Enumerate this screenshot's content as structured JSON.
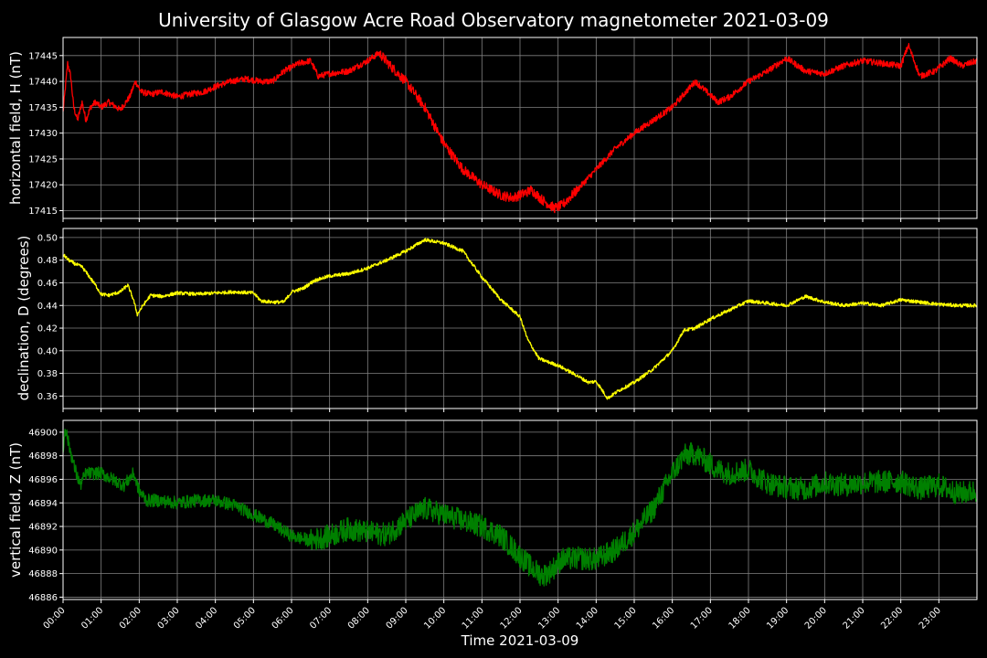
{
  "title": "University of Glasgow Acre Road Observatory magnetometer 2021-03-09",
  "colors": {
    "background": "#000000",
    "axis": "#ffffff",
    "grid": "#808080",
    "h": "#ff0000",
    "d": "#ffff00",
    "z": "#008000"
  },
  "chart_data": [
    {
      "type": "line",
      "ylabel": "horizontal field, H (nT)",
      "color": "#ff0000",
      "ylim": [
        17413.5,
        17448.5
      ],
      "yticks": [
        17415,
        17420,
        17425,
        17430,
        17435,
        17440,
        17445
      ],
      "xlim": [
        0,
        24
      ],
      "noise": 0.6,
      "x": [
        0,
        0.05,
        0.12,
        0.2,
        0.28,
        0.38,
        0.5,
        0.6,
        0.72,
        0.85,
        1.0,
        1.2,
        1.5,
        1.75,
        1.9,
        2.05,
        2.3,
        2.6,
        3.0,
        3.3,
        3.7,
        4.0,
        4.4,
        4.8,
        5.2,
        5.5,
        5.8,
        6.2,
        6.5,
        6.7,
        7.0,
        7.5,
        8.0,
        8.3,
        8.6,
        9.0,
        9.5,
        10.0,
        10.5,
        11.0,
        11.5,
        11.8,
        12.0,
        12.3,
        12.6,
        12.9,
        13.1,
        13.5,
        14.0,
        14.5,
        15.0,
        15.5,
        16.0,
        16.3,
        16.6,
        16.9,
        17.2,
        17.5,
        18.0,
        18.5,
        19.0,
        19.5,
        20.0,
        20.5,
        21.0,
        21.5,
        22.0,
        22.2,
        22.5,
        22.9,
        23.3,
        23.6,
        24.0
      ],
      "y": [
        17434,
        17438,
        17443.5,
        17441,
        17435,
        17432.5,
        17436,
        17432.5,
        17435,
        17436,
        17435,
        17436,
        17434.5,
        17437,
        17440,
        17438,
        17437.5,
        17438,
        17437,
        17437.5,
        17438,
        17439,
        17440,
        17440.5,
        17440,
        17440,
        17442,
        17443.5,
        17444,
        17441,
        17441.5,
        17442,
        17444,
        17445.5,
        17443,
        17440,
        17435,
        17428,
        17423,
        17420,
        17418,
        17417.5,
        17418,
        17419,
        17417,
        17415.5,
        17416,
        17419,
        17423,
        17427,
        17430,
        17432.5,
        17435,
        17437.5,
        17440,
        17438,
        17436,
        17437,
        17440,
        17442,
        17444.5,
        17442,
        17441.5,
        17443,
        17444,
        17443.5,
        17443,
        17447,
        17441,
        17442,
        17444.5,
        17443,
        17444
      ]
    },
    {
      "type": "line",
      "ylabel": "declination, D (degrees)",
      "color": "#ffff00",
      "ylim": [
        0.349,
        0.508
      ],
      "yticks": [
        0.36,
        0.38,
        0.4,
        0.42,
        0.44,
        0.46,
        0.48,
        0.5
      ],
      "xlim": [
        0,
        24
      ],
      "noise": 0.0015,
      "x": [
        0,
        0.15,
        0.3,
        0.5,
        0.7,
        0.85,
        1.0,
        1.2,
        1.5,
        1.7,
        1.85,
        1.95,
        2.1,
        2.3,
        2.6,
        3.0,
        3.5,
        4.0,
        4.5,
        5.0,
        5.2,
        5.5,
        5.8,
        6.0,
        6.3,
        6.6,
        7.0,
        7.5,
        8.0,
        8.5,
        9.0,
        9.5,
        10.0,
        10.5,
        11.0,
        11.5,
        12.0,
        12.2,
        12.5,
        13.0,
        13.5,
        13.8,
        14.0,
        14.3,
        14.6,
        15.0,
        15.5,
        16.0,
        16.3,
        16.6,
        17.0,
        17.5,
        18.0,
        18.5,
        19.0,
        19.5,
        20.0,
        20.5,
        21.0,
        21.5,
        22.0,
        22.5,
        23.0,
        23.5,
        24.0
      ],
      "y": [
        0.485,
        0.48,
        0.477,
        0.474,
        0.465,
        0.458,
        0.45,
        0.449,
        0.452,
        0.458,
        0.445,
        0.432,
        0.44,
        0.449,
        0.448,
        0.451,
        0.45,
        0.451,
        0.452,
        0.451,
        0.444,
        0.443,
        0.443,
        0.452,
        0.455,
        0.462,
        0.466,
        0.468,
        0.473,
        0.48,
        0.488,
        0.498,
        0.495,
        0.488,
        0.465,
        0.445,
        0.43,
        0.41,
        0.393,
        0.387,
        0.378,
        0.372,
        0.373,
        0.358,
        0.365,
        0.372,
        0.384,
        0.4,
        0.418,
        0.42,
        0.428,
        0.436,
        0.444,
        0.442,
        0.44,
        0.448,
        0.443,
        0.44,
        0.442,
        0.44,
        0.445,
        0.443,
        0.441,
        0.44,
        0.44
      ]
    },
    {
      "type": "line",
      "ylabel": "vertical field, Z (nT)",
      "color": "#008000",
      "ylim": [
        46885.8,
        46901.0
      ],
      "yticks": [
        46886,
        46888,
        46890,
        46892,
        46894,
        46896,
        46898,
        46900
      ],
      "xlim": [
        0,
        24
      ],
      "noise": 0.55,
      "x": [
        0,
        0.05,
        0.15,
        0.3,
        0.45,
        0.6,
        0.8,
        1.0,
        1.3,
        1.6,
        1.85,
        2.0,
        2.2,
        2.5,
        3.0,
        3.5,
        4.0,
        4.5,
        5.0,
        5.5,
        6.0,
        6.5,
        7.0,
        7.5,
        8.0,
        8.5,
        9.0,
        9.5,
        10.0,
        10.5,
        11.0,
        11.5,
        12.0,
        12.3,
        12.6,
        12.8,
        13.1,
        13.5,
        14.0,
        14.5,
        15.0,
        15.5,
        16.0,
        16.3,
        16.6,
        16.9,
        17.2,
        17.5,
        18.0,
        18.5,
        19.0,
        19.5,
        20.0,
        20.5,
        21.0,
        21.5,
        22.0,
        22.5,
        23.0,
        23.5,
        24.0
      ],
      "y": [
        46898,
        46900.5,
        46899,
        46897,
        46895.5,
        46896.5,
        46896.5,
        46896.5,
        46896,
        46895.5,
        46896.5,
        46895,
        46894.2,
        46894.2,
        46894,
        46894.2,
        46894.2,
        46893.8,
        46893,
        46892.2,
        46891.2,
        46890.8,
        46891.2,
        46891.8,
        46891.5,
        46891.3,
        46892.5,
        46893.5,
        46893,
        46892.5,
        46892,
        46891.2,
        46889.5,
        46888.5,
        46887.8,
        46888.2,
        46889.2,
        46889.3,
        46889.2,
        46890,
        46891.5,
        46893.5,
        46896.5,
        46898,
        46898.2,
        46897.5,
        46896.8,
        46896.5,
        46896.8,
        46895.7,
        46895.3,
        46895.2,
        46895.7,
        46895.5,
        46895.7,
        46895.8,
        46895.8,
        46895.2,
        46895.5,
        46894.8,
        46895
      ]
    }
  ],
  "xticks": [
    "00:00",
    "01:00",
    "02:00",
    "03:00",
    "04:00",
    "05:00",
    "06:00",
    "07:00",
    "08:00",
    "09:00",
    "10:00",
    "11:00",
    "12:00",
    "13:00",
    "14:00",
    "15:00",
    "16:00",
    "17:00",
    "18:00",
    "19:00",
    "20:00",
    "21:00",
    "22:00",
    "23:00"
  ],
  "xlabel": "Time 2021-03-09"
}
